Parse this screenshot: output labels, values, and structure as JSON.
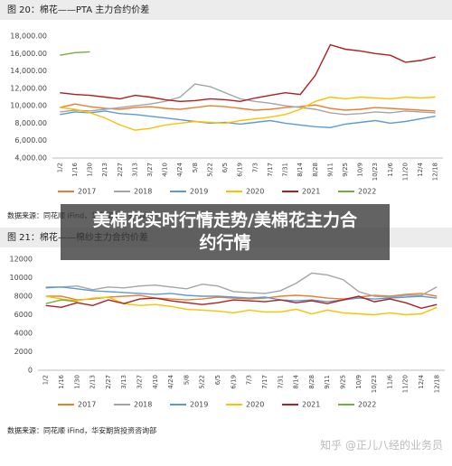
{
  "chart_data": [
    {
      "type": "line",
      "title": "图 20：棉花——PTA 主力合约价差",
      "source": "数据来源：同花顺 iFind，华安期货投资咨询部",
      "grid": false,
      "categories": [
        "1/2",
        "1/16",
        "1/30",
        "2/13",
        "2/27",
        "3/13",
        "3/27",
        "4/10",
        "4/24",
        "5/8",
        "5/22",
        "6/5",
        "6/19",
        "7/3",
        "7/17",
        "7/31",
        "8/14",
        "8/28",
        "9/11",
        "9/25",
        "10/9",
        "10/23",
        "11/6",
        "11/20",
        "12/4",
        "12/18"
      ],
      "ylim": [
        4000,
        18000
      ],
      "yticks": [
        {
          "value": 4000,
          "label": "4,000.00"
        },
        {
          "value": 6000,
          "label": "6,000.00"
        },
        {
          "value": 8000,
          "label": "8,000.00"
        },
        {
          "value": 10000,
          "label": "10,000.00"
        },
        {
          "value": 12000,
          "label": "12,000.00"
        },
        {
          "value": 14000,
          "label": "14,000.00"
        },
        {
          "value": 16000,
          "label": "16,000.00"
        },
        {
          "value": 18000,
          "label": "18,000.00"
        }
      ],
      "series": [
        {
          "name": "2017",
          "color": "#ed7d31",
          "values": [
            9800,
            10200,
            9900,
            9700,
            9600,
            9800,
            9900,
            9700,
            9600,
            9800,
            10000,
            9900,
            9700,
            9500,
            9600,
            9800,
            9900,
            10100,
            9700,
            9500,
            9600,
            9800,
            9700,
            9600,
            9500,
            9400
          ]
        },
        {
          "name": "2018",
          "color": "#a5a5a5",
          "values": [
            9300,
            9500,
            9400,
            9600,
            9800,
            10000,
            10200,
            10500,
            11000,
            12500,
            12200,
            11500,
            10800,
            10500,
            10300,
            10000,
            9800,
            9600,
            9200,
            9000,
            9100,
            9300,
            9200,
            9400,
            9300,
            9200
          ]
        },
        {
          "name": "2019",
          "color": "#5b9bd5",
          "values": [
            9000,
            9300,
            9200,
            9400,
            9100,
            9000,
            8800,
            8600,
            8400,
            8200,
            8000,
            8100,
            7900,
            8100,
            8300,
            8000,
            7800,
            7600,
            7500,
            7900,
            8100,
            8300,
            8000,
            8200,
            8500,
            8800
          ]
        },
        {
          "name": "2020",
          "color": "#ffc000",
          "values": [
            9800,
            9600,
            9200,
            8600,
            7800,
            7200,
            7400,
            7800,
            8000,
            8200,
            8100,
            8000,
            8300,
            8500,
            8700,
            9000,
            9600,
            10500,
            11000,
            10800,
            11000,
            10900,
            10800,
            11000,
            10900,
            11000
          ]
        },
        {
          "name": "2021",
          "color": "#b01e1e",
          "values": [
            11500,
            11300,
            11200,
            11000,
            10800,
            11200,
            11000,
            10700,
            10500,
            10600,
            10800,
            10700,
            10500,
            10900,
            11200,
            11500,
            11300,
            13500,
            17000,
            16500,
            16300,
            16000,
            15800,
            15000,
            15200,
            15600
          ]
        },
        {
          "name": "2022",
          "color": "#70ad47",
          "values": [
            15800,
            16100,
            16200,
            null,
            null,
            null,
            null,
            null,
            null,
            null,
            null,
            null,
            null,
            null,
            null,
            null,
            null,
            null,
            null,
            null,
            null,
            null,
            null,
            null,
            null,
            null
          ]
        }
      ]
    },
    {
      "type": "line",
      "title": "图 21：棉花——棉纱主力合约价差",
      "source": "数据来源：同花顺 iFind，华安期货投资咨询部",
      "grid": false,
      "categories": [
        "1/2",
        "1/16",
        "1/30",
        "2/13",
        "2/27",
        "3/13",
        "3/27",
        "4/10",
        "4/24",
        "5/8",
        "5/22",
        "6/5",
        "6/19",
        "7/3",
        "7/17",
        "7/31",
        "8/14",
        "8/28",
        "9/11",
        "9/25",
        "10/9",
        "10/23",
        "11/6",
        "11/20",
        "12/4",
        "12/18"
      ],
      "ylim": [
        0,
        12000
      ],
      "yticks": [
        0,
        2000,
        4000,
        6000,
        8000,
        10000,
        12000
      ],
      "series": [
        {
          "name": "2017",
          "color": "#ed7d31",
          "values": [
            8000,
            8000,
            7600,
            7700,
            7900,
            8000,
            8100,
            7800,
            7700,
            7600,
            7700,
            7900,
            7800,
            7700,
            7800,
            8000,
            8100,
            8000,
            7800,
            7700,
            7900,
            8100,
            8000,
            8200,
            8300,
            8000
          ]
        },
        {
          "name": "2018",
          "color": "#a5a5a5",
          "values": [
            9000,
            9000,
            9100,
            8700,
            9000,
            8900,
            9100,
            9200,
            9000,
            8800,
            9300,
            9100,
            8500,
            8400,
            8300,
            8600,
            9400,
            10500,
            10300,
            9800,
            8500,
            8000,
            7900,
            8100,
            8100,
            9000
          ]
        },
        {
          "name": "2019",
          "color": "#5b9bd5",
          "values": [
            8900,
            9000,
            8800,
            8600,
            8500,
            8400,
            8300,
            8200,
            8300,
            8100,
            8000,
            8000,
            7900,
            7800,
            7900,
            7600,
            7500,
            7600,
            7400,
            7600,
            7800,
            7700,
            7800,
            7900,
            8000,
            7800
          ]
        },
        {
          "name": "2020",
          "color": "#ffc000",
          "values": [
            8000,
            7700,
            7500,
            7800,
            7900,
            7200,
            7000,
            7100,
            6900,
            6600,
            6500,
            6400,
            6200,
            6500,
            6300,
            6300,
            6600,
            6100,
            6500,
            6200,
            6100,
            6000,
            6200,
            6000,
            6100,
            6800
          ]
        },
        {
          "name": "2021",
          "color": "#b01e1e",
          "values": [
            7000,
            6800,
            7300,
            7000,
            7600,
            7200,
            7700,
            7800,
            7500,
            7300,
            7100,
            7300,
            7600,
            7500,
            7400,
            7600,
            7300,
            7500,
            7200,
            7600,
            8000,
            7400,
            7700,
            7300,
            6700,
            7100
          ]
        },
        {
          "name": "2022",
          "color": "#70ad47",
          "values": [
            7200,
            7600,
            7400,
            null,
            null,
            null,
            null,
            null,
            null,
            null,
            null,
            null,
            null,
            null,
            null,
            null,
            null,
            null,
            null,
            null,
            null,
            null,
            null,
            null,
            null,
            null
          ]
        }
      ]
    }
  ],
  "overlay_title": "美棉花实时行情走势/美棉花主力合约行情",
  "watermark": "知乎 @正儿八经的业务员"
}
